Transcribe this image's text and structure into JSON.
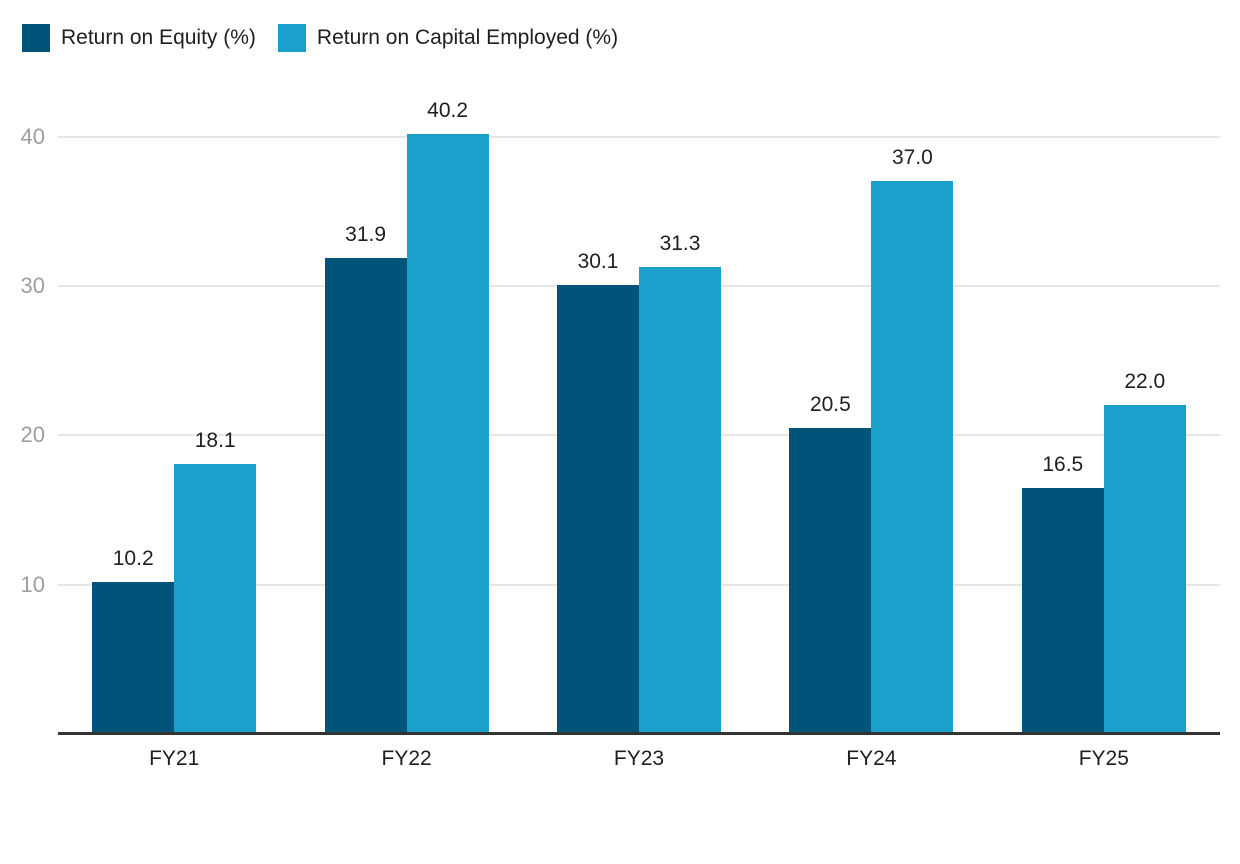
{
  "chart_data": {
    "type": "bar",
    "title": "",
    "xlabel": "",
    "ylabel": "",
    "categories": [
      "FY21",
      "FY22",
      "FY23",
      "FY24",
      "FY25"
    ],
    "series": [
      {
        "name": "Return on Equity (%)",
        "color": "#015479",
        "values": [
          10.2,
          31.9,
          30.1,
          20.5,
          16.5
        ]
      },
      {
        "name": "Return on Capital Employed (%)",
        "color": "#1aa0cb",
        "values": [
          18.1,
          40.2,
          31.3,
          37.0,
          22.0
        ]
      }
    ],
    "yticks": [
      10,
      20,
      30,
      40
    ],
    "ylim": [
      0,
      45
    ],
    "grid": true,
    "legend_position": "top-left",
    "value_labels": true,
    "value_label_decimals": 1
  },
  "colors": {
    "background": "#ffffff",
    "gridline": "#e6e6e6",
    "axis_line": "#333333",
    "y_tick_label": "#9e9e9e",
    "x_tick_label": "#1f1f1f",
    "value_label": "#1f1f1f",
    "legend_text": "#1f1f1f"
  }
}
